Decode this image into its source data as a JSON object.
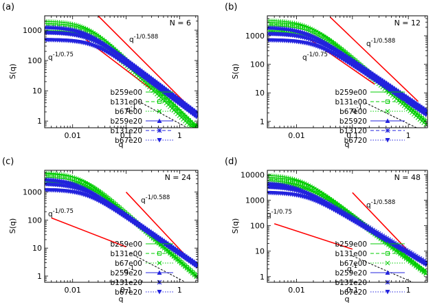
{
  "chart_data": [
    {
      "type": "scatter",
      "panel_label": "(a)",
      "annotation_n": "N = 6",
      "xlabel": "q",
      "ylabel": "S(q)",
      "xscale": "log",
      "yscale": "log",
      "xlim": [
        0.003,
        2.2
      ],
      "ylim": [
        0.6,
        3000
      ],
      "xticks": [
        0.01,
        0.1,
        1
      ],
      "xtick_labels": [
        "0.01",
        "0.1",
        "1"
      ],
      "yticks": [
        1,
        10,
        100,
        1000
      ],
      "ytick_labels": [
        "1",
        "10",
        "100",
        "1000"
      ],
      "legend_position": "bottom-right",
      "series": [
        {
          "name": "b259e00",
          "color": "#00cc00",
          "marker": "plus",
          "line": "solid",
          "plateau": 2000,
          "knee": 0.019,
          "slope": 1.7
        },
        {
          "name": "b131e00",
          "color": "#00cc00",
          "marker": "square",
          "line": "dashed",
          "plateau": 1500,
          "knee": 0.02,
          "slope": 1.7
        },
        {
          "name": "b67e00",
          "color": "#00cc00",
          "marker": "cross",
          "line": "dotted",
          "plateau": 900,
          "knee": 0.023,
          "slope": 1.7
        },
        {
          "name": "b259e20",
          "color": "#2222dd",
          "marker": "triangle",
          "line": "solid",
          "plateau": 1300,
          "knee": 0.016,
          "slope": 1.33
        },
        {
          "name": "b131e20",
          "color": "#2222dd",
          "marker": "star",
          "line": "dashed",
          "plateau": 850,
          "knee": 0.02,
          "slope": 1.33
        },
        {
          "name": "b67e20",
          "color": "#2222dd",
          "marker": "triangle-down",
          "line": "dotted",
          "plateau": 480,
          "knee": 0.025,
          "slope": 1.33
        }
      ],
      "guides": [
        {
          "label": "q^-1/0.588",
          "base": "q",
          "exponent": "-1/0.588",
          "color": "#ff0000",
          "points": [
            [
              0.03,
              3000
            ],
            [
              1.5,
              3
            ]
          ]
        },
        {
          "label": "q^-1/0.75",
          "base": "q",
          "exponent": "-1/0.75",
          "color": "#ff0000",
          "points": [
            [
              0.018,
              480
            ],
            [
              0.3,
              11
            ]
          ]
        },
        {
          "label": "q^-1",
          "base": "q",
          "exponent": "-1",
          "color": "#000000",
          "points": [
            [
              0.17,
              4.5
            ],
            [
              1.4,
              0.6
            ]
          ]
        }
      ]
    },
    {
      "type": "scatter",
      "panel_label": "(b)",
      "annotation_n": "N = 12",
      "xlabel": "q",
      "ylabel": "S(q)",
      "xscale": "log",
      "yscale": "log",
      "xlim": [
        0.003,
        2.2
      ],
      "ylim": [
        0.6,
        5000
      ],
      "xticks": [
        0.01,
        0.1,
        1
      ],
      "xtick_labels": [
        "0.01",
        "0.1",
        "1"
      ],
      "yticks": [
        1,
        10,
        100,
        1000
      ],
      "ytick_labels": [
        "1",
        "10",
        "100",
        "1000"
      ],
      "legend_position": "bottom-right",
      "series": [
        {
          "name": "b259e00",
          "color": "#00cc00",
          "marker": "plus",
          "line": "solid",
          "plateau": 3500,
          "knee": 0.017,
          "slope": 1.7
        },
        {
          "name": "b131e00",
          "color": "#00cc00",
          "marker": "square",
          "line": "dashed",
          "plateau": 2600,
          "knee": 0.02,
          "slope": 1.7
        },
        {
          "name": "b67e00",
          "color": "#00cc00",
          "marker": "cross",
          "line": "dotted",
          "plateau": 1500,
          "knee": 0.024,
          "slope": 1.7
        },
        {
          "name": "b25920",
          "color": "#2222dd",
          "marker": "triangle",
          "line": "solid",
          "plateau": 2000,
          "knee": 0.014,
          "slope": 1.33
        },
        {
          "name": "b13120",
          "color": "#2222dd",
          "marker": "star",
          "line": "dashed",
          "plateau": 1200,
          "knee": 0.018,
          "slope": 1.33
        },
        {
          "name": "b6720",
          "color": "#2222dd",
          "marker": "triangle-down",
          "line": "dotted",
          "plateau": 700,
          "knee": 0.022,
          "slope": 1.33
        }
      ],
      "guides": [
        {
          "label": "q^-1/0.588",
          "base": "q",
          "exponent": "-1/0.588",
          "color": "#ff0000",
          "points": [
            [
              0.04,
              4500
            ],
            [
              1.5,
              5
            ]
          ]
        },
        {
          "label": "q^-1/0.75",
          "base": "q",
          "exponent": "-1/0.75",
          "color": "#ff0000",
          "points": [
            [
              0.018,
              700
            ],
            [
              0.25,
              20
            ]
          ]
        },
        {
          "label": "q^-1",
          "base": "q",
          "exponent": "-1",
          "color": "#000000",
          "points": [
            [
              0.17,
              4.5
            ],
            [
              1.4,
              0.6
            ]
          ]
        }
      ]
    },
    {
      "type": "scatter",
      "panel_label": "(c)",
      "annotation_n": "N = 24",
      "xlabel": "q",
      "ylabel": "S(q)",
      "xscale": "log",
      "yscale": "log",
      "xlim": [
        0.003,
        2.2
      ],
      "ylim": [
        0.6,
        6000
      ],
      "xticks": [
        0.01,
        0.1,
        1
      ],
      "xtick_labels": [
        "0.01",
        "0.1",
        "1"
      ],
      "yticks": [
        1,
        10,
        100,
        1000
      ],
      "ytick_labels": [
        "1",
        "10",
        "100",
        "1000"
      ],
      "legend_position": "bottom-right",
      "series": [
        {
          "name": "b259e00",
          "color": "#00cc00",
          "marker": "plus",
          "line": "solid",
          "plateau": 5000,
          "knee": 0.014,
          "slope": 1.7
        },
        {
          "name": "b131e00",
          "color": "#00cc00",
          "marker": "square",
          "line": "dashed",
          "plateau": 4000,
          "knee": 0.016,
          "slope": 1.7
        },
        {
          "name": "b67e00",
          "color": "#00cc00",
          "marker": "cross",
          "line": "dotted",
          "plateau": 2500,
          "knee": 0.02,
          "slope": 1.7
        },
        {
          "name": "b259e20",
          "color": "#2222dd",
          "marker": "triangle",
          "line": "solid",
          "plateau": 3000,
          "knee": 0.011,
          "slope": 1.33
        },
        {
          "name": "b131e20",
          "color": "#2222dd",
          "marker": "star",
          "line": "dashed",
          "plateau": 2000,
          "knee": 0.014,
          "slope": 1.33
        },
        {
          "name": "b67e20",
          "color": "#2222dd",
          "marker": "triangle-down",
          "line": "dotted",
          "plateau": 1200,
          "knee": 0.018,
          "slope": 1.33
        }
      ],
      "guides": [
        {
          "label": "q^-1/0.588",
          "base": "q",
          "exponent": "-1/0.588",
          "color": "#ff0000",
          "points": [
            [
              0.1,
              1000
            ],
            [
              1.5,
              4
            ]
          ]
        },
        {
          "label": "q^-1/0.75",
          "base": "q",
          "exponent": "-1/0.75",
          "color": "#ff0000",
          "points": [
            [
              0.004,
              120
            ],
            [
              0.1,
              11
            ]
          ]
        },
        {
          "label": "q^-1",
          "base": "q",
          "exponent": "-1",
          "color": "#000000",
          "points": [
            [
              0.12,
              6.5
            ],
            [
              1.2,
              0.65
            ]
          ]
        }
      ]
    },
    {
      "type": "scatter",
      "panel_label": "(d)",
      "annotation_n": "N = 48",
      "xlabel": "q",
      "ylabel": "S(q)",
      "xscale": "log",
      "yscale": "log",
      "xlim": [
        0.003,
        2.2
      ],
      "ylim": [
        0.6,
        15000
      ],
      "xticks": [
        0.01,
        0.1,
        1
      ],
      "xtick_labels": [
        "0.01",
        "0.1",
        "1"
      ],
      "yticks": [
        1,
        10,
        100,
        1000,
        10000
      ],
      "ytick_labels": [
        "1",
        "10",
        "100",
        "1000",
        "10000"
      ],
      "legend_position": "bottom-right",
      "series": [
        {
          "name": "b259e00",
          "color": "#00cc00",
          "marker": "plus",
          "line": "solid",
          "plateau": 10000,
          "knee": 0.012,
          "slope": 1.7
        },
        {
          "name": "b131e00",
          "color": "#00cc00",
          "marker": "square",
          "line": "dashed",
          "plateau": 7000,
          "knee": 0.014,
          "slope": 1.7
        },
        {
          "name": "b67e00",
          "color": "#00cc00",
          "marker": "cross",
          "line": "dotted",
          "plateau": 4500,
          "knee": 0.017,
          "slope": 1.7
        },
        {
          "name": "b259e20",
          "color": "#2222dd",
          "marker": "triangle",
          "line": "solid",
          "plateau": 5000,
          "knee": 0.009,
          "slope": 1.33
        },
        {
          "name": "b131e20",
          "color": "#2222dd",
          "marker": "star",
          "line": "dashed",
          "plateau": 3500,
          "knee": 0.012,
          "slope": 1.33
        },
        {
          "name": "b67e20",
          "color": "#2222dd",
          "marker": "triangle-down",
          "line": "dotted",
          "plateau": 2000,
          "knee": 0.015,
          "slope": 1.33
        }
      ],
      "guides": [
        {
          "label": "q^-1/0.588",
          "base": "q",
          "exponent": "-1/0.588",
          "color": "#ff0000",
          "points": [
            [
              0.1,
              2000
            ],
            [
              1.5,
              4
            ]
          ]
        },
        {
          "label": "q^-1/0.75",
          "base": "q",
          "exponent": "-1/0.75",
          "color": "#ff0000",
          "points": [
            [
              0.004,
              120
            ],
            [
              0.1,
              12
            ]
          ]
        },
        {
          "label": "q^-1",
          "base": "q",
          "exponent": "-1",
          "color": "#000000",
          "points": [
            [
              0.1,
              6.5
            ],
            [
              1.2,
              0.6
            ]
          ]
        }
      ]
    }
  ]
}
